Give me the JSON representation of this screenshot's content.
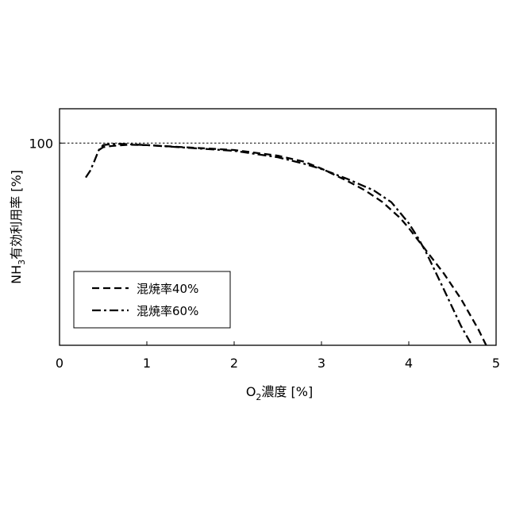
{
  "chart_data": {
    "type": "line",
    "xlabel": {
      "main": "O",
      "sub": "2",
      "rest": "濃度 [%]"
    },
    "ylabel": {
      "main": "NH",
      "sub": "3",
      "rest": "有効利用率 [%]"
    },
    "xlim": [
      0,
      5
    ],
    "ylim": [
      50,
      108.5
    ],
    "xticks": [
      "0",
      "1",
      "2",
      "3",
      "4",
      "5"
    ],
    "yticks": [
      "100"
    ],
    "reference_line": {
      "y": 100,
      "style": "dotted"
    },
    "grid": false,
    "legend": "bottom-left",
    "series": [
      {
        "name": "混焼率40%",
        "dash": "dashed",
        "points": [
          [
            0.45,
            98.3
          ],
          [
            0.5,
            99.0
          ],
          [
            0.6,
            99.3
          ],
          [
            0.8,
            99.6
          ],
          [
            1.0,
            99.5
          ],
          [
            1.5,
            98.9
          ],
          [
            2.0,
            98.3
          ],
          [
            2.5,
            96.9
          ],
          [
            2.8,
            95.4
          ],
          [
            3.0,
            93.7
          ],
          [
            3.3,
            90.6
          ],
          [
            3.5,
            88.3
          ],
          [
            3.7,
            85.4
          ],
          [
            3.9,
            81.5
          ],
          [
            4.0,
            79.0
          ],
          [
            4.2,
            73.4
          ],
          [
            4.4,
            67.8
          ],
          [
            4.6,
            61.4
          ],
          [
            4.8,
            53.8
          ],
          [
            4.92,
            48.5
          ]
        ]
      },
      {
        "name": "混焼率60%",
        "dash": "dashdot",
        "points": [
          [
            0.3,
            91.5
          ],
          [
            0.35,
            93.1
          ],
          [
            0.4,
            95.6
          ],
          [
            0.45,
            98.3
          ],
          [
            0.5,
            99.5
          ],
          [
            0.6,
            99.8
          ],
          [
            0.7,
            99.8
          ],
          [
            1.0,
            99.5
          ],
          [
            1.5,
            98.8
          ],
          [
            2.0,
            98.1
          ],
          [
            2.5,
            96.5
          ],
          [
            2.8,
            94.9
          ],
          [
            3.0,
            93.6
          ],
          [
            3.3,
            91.1
          ],
          [
            3.6,
            88.3
          ],
          [
            3.8,
            85.4
          ],
          [
            4.0,
            80.2
          ],
          [
            4.1,
            76.8
          ],
          [
            4.2,
            72.9
          ],
          [
            4.4,
            63.9
          ],
          [
            4.6,
            54.7
          ],
          [
            4.75,
            49.0
          ]
        ]
      }
    ]
  }
}
